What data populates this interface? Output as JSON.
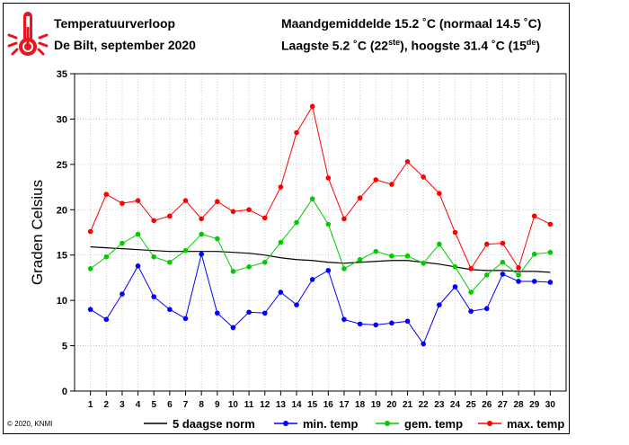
{
  "header": {
    "title": "Temperatuurverloop",
    "subtitle": "De Bilt, september 2020",
    "monthly_avg": "Maandgemiddelde 15.2 ˚C (normaal 14.5 ˚C)",
    "extremes_prefix": "Laagste 5.2 ˚C (22",
    "extremes_sup1": "ste",
    "extremes_mid": "), hoogste 31.4 ˚C (15",
    "extremes_sup2": "de",
    "extremes_suffix": ")"
  },
  "copyright": "© 2020, KNMI",
  "icon": "thermometer-icon",
  "chart_data": {
    "type": "line",
    "ylabel": "Graden Celsius",
    "ylim": [
      0,
      35
    ],
    "yticks": [
      0,
      5,
      10,
      15,
      20,
      25,
      30,
      35
    ],
    "x": [
      1,
      2,
      3,
      4,
      5,
      6,
      7,
      8,
      9,
      10,
      11,
      12,
      13,
      14,
      15,
      16,
      17,
      18,
      19,
      20,
      21,
      22,
      23,
      24,
      25,
      26,
      27,
      28,
      29,
      30
    ],
    "grid": true,
    "legend_placement": "bottom",
    "series": [
      {
        "name": "5 daagse norm",
        "color": "#000000",
        "markers": false,
        "values": [
          15.9,
          15.8,
          15.7,
          15.6,
          15.5,
          15.4,
          15.4,
          15.4,
          15.4,
          15.3,
          15.2,
          15.0,
          14.7,
          14.5,
          14.4,
          14.2,
          14.1,
          14.2,
          14.3,
          14.4,
          14.4,
          14.2,
          14.0,
          13.7,
          13.4,
          13.3,
          13.3,
          13.2,
          13.2,
          13.1
        ]
      },
      {
        "name": "min. temp",
        "color": "#0000ff",
        "markers": true,
        "values": [
          9.0,
          7.9,
          10.7,
          13.8,
          10.4,
          9.0,
          8.0,
          15.1,
          8.6,
          7.0,
          8.7,
          8.6,
          10.9,
          9.5,
          12.3,
          13.3,
          7.9,
          7.4,
          7.3,
          7.5,
          7.7,
          5.2,
          9.5,
          11.5,
          8.8,
          9.1,
          12.9,
          12.1,
          12.1,
          12.0
        ]
      },
      {
        "name": "gem. temp",
        "color": "#00cc00",
        "markers": true,
        "values": [
          13.5,
          14.8,
          16.3,
          17.3,
          14.8,
          14.2,
          15.5,
          17.3,
          16.8,
          13.2,
          13.7,
          14.2,
          16.4,
          18.6,
          21.2,
          18.4,
          13.5,
          14.5,
          15.4,
          14.9,
          14.9,
          14.1,
          16.2,
          13.7,
          10.9,
          12.8,
          14.2,
          12.8,
          15.1,
          15.3
        ]
      },
      {
        "name": "max. temp",
        "color": "#ff0000",
        "markers": true,
        "values": [
          17.6,
          21.7,
          20.7,
          21.0,
          18.8,
          19.3,
          21.0,
          19.0,
          20.9,
          19.8,
          20.0,
          19.1,
          22.5,
          28.5,
          31.4,
          23.5,
          19.0,
          21.3,
          23.3,
          22.8,
          25.3,
          23.6,
          21.8,
          17.5,
          13.5,
          16.2,
          16.3,
          13.6,
          19.3,
          18.4
        ]
      }
    ]
  }
}
